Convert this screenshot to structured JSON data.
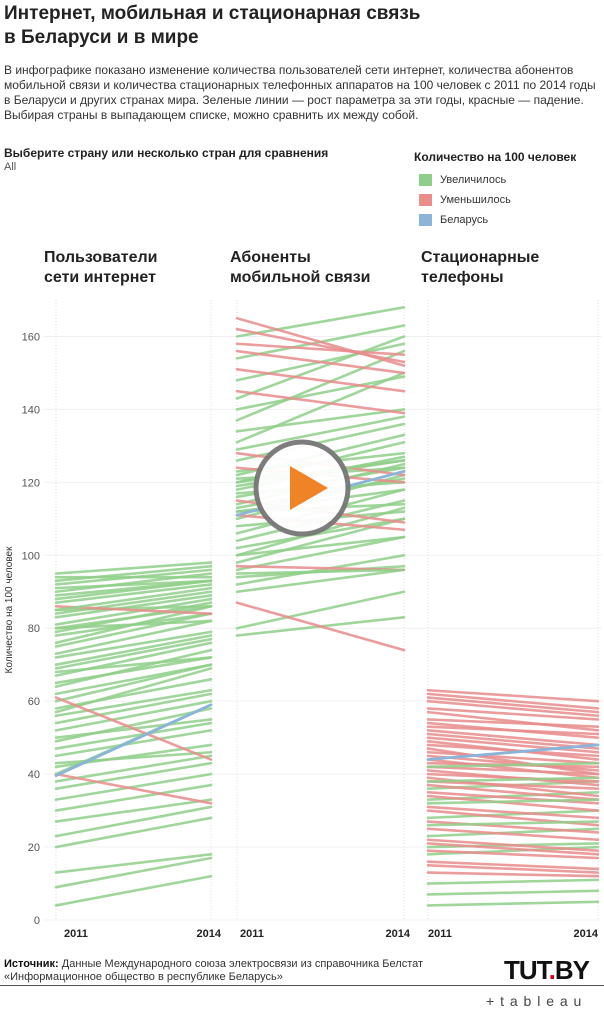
{
  "header": {
    "title_line1": "Интернет, мобильная и стационарная связь",
    "title_line2": "в Беларуси и в мире",
    "description": "В инфографике показано изменение количества пользователей сети интернет, количества абонентов мобильной связи и количества стационарных телефонных аппаратов на 100 человек с 2011 по 2014 годы в Беларуси и других странах мира. Зеленые линии — рост параметра за эти годы, красные — падение. Выбирая страны в выпадающем списке, можно сравнить их между собой."
  },
  "filter": {
    "label": "Выберите страну или несколько стран для сравнения",
    "value": "All"
  },
  "legend": {
    "title": "Количество на 100 человек",
    "items": [
      {
        "label": "Увеличилось",
        "color": "#8fcf8a"
      },
      {
        "label": "Уменьшилось",
        "color": "#e88c8c"
      },
      {
        "label": "Беларусь",
        "color": "#8ab4d8"
      }
    ]
  },
  "panels": [
    {
      "title_line1": "Пользователи",
      "title_line2": "сети интернет"
    },
    {
      "title_line1": "Абоненты",
      "title_line2": "мобильной связи"
    },
    {
      "title_line1": "Стационарные",
      "title_line2": "телефоны"
    }
  ],
  "chart_data": {
    "type": "line",
    "ylabel": "Количество на 100 человек",
    "ylim": [
      0,
      170
    ],
    "yticks": [
      0,
      20,
      40,
      60,
      80,
      100,
      120,
      140,
      160
    ],
    "x": [
      "2011",
      "2014"
    ],
    "colors": {
      "increase": "#8fcf8a",
      "decrease": "#e88c8c",
      "belarus": "#8ab4d8"
    },
    "panels": [
      {
        "name": "Пользователи сети интернет",
        "lines": [
          [
            4,
            12
          ],
          [
            9,
            17
          ],
          [
            13,
            18
          ],
          [
            20,
            28
          ],
          [
            23,
            31
          ],
          [
            27,
            33
          ],
          [
            30,
            37
          ],
          [
            33,
            40
          ],
          [
            36,
            43
          ],
          [
            38,
            45
          ],
          [
            40,
            32
          ],
          [
            40,
            59
          ],
          [
            42,
            48
          ],
          [
            43,
            46
          ],
          [
            45,
            52
          ],
          [
            47,
            54
          ],
          [
            49,
            58
          ],
          [
            50,
            55
          ],
          [
            52,
            60
          ],
          [
            54,
            62
          ],
          [
            56,
            63
          ],
          [
            57,
            69
          ],
          [
            58,
            66
          ],
          [
            60,
            70
          ],
          [
            62,
            70
          ],
          [
            64,
            74
          ],
          [
            65,
            72
          ],
          [
            67,
            76
          ],
          [
            69,
            77
          ],
          [
            70,
            78
          ],
          [
            72,
            79
          ],
          [
            73,
            82
          ],
          [
            75,
            84
          ],
          [
            76,
            86
          ],
          [
            78,
            84
          ],
          [
            79,
            87
          ],
          [
            80,
            86
          ],
          [
            81,
            88
          ],
          [
            83,
            89
          ],
          [
            84,
            90
          ],
          [
            85,
            86
          ],
          [
            86,
            84
          ],
          [
            87,
            92
          ],
          [
            88,
            93
          ],
          [
            90,
            95
          ],
          [
            91,
            93
          ],
          [
            92,
            96
          ],
          [
            93,
            97
          ],
          [
            94,
            94
          ],
          [
            95,
            98
          ],
          [
            61,
            44
          ],
          [
            80,
            82
          ],
          [
            85,
            91
          ],
          [
            89,
            93
          ],
          [
            68,
            72
          ]
        ],
        "belarus": [
          39.6,
          59
        ]
      },
      {
        "name": "Абоненты мобильной связи",
        "lines": [
          [
            78,
            83
          ],
          [
            80,
            90
          ],
          [
            87,
            74
          ],
          [
            90,
            96
          ],
          [
            92,
            100
          ],
          [
            94,
            97
          ],
          [
            96,
            105
          ],
          [
            97,
            96
          ],
          [
            98,
            110
          ],
          [
            100,
            113
          ],
          [
            102,
            110
          ],
          [
            104,
            115
          ],
          [
            106,
            118
          ],
          [
            108,
            112
          ],
          [
            110,
            122
          ],
          [
            111,
            107
          ],
          [
            112,
            118
          ],
          [
            113,
            121
          ],
          [
            114,
            125
          ],
          [
            115,
            109
          ],
          [
            116,
            124
          ],
          [
            117,
            120
          ],
          [
            118,
            127
          ],
          [
            119,
            126
          ],
          [
            120,
            131
          ],
          [
            121,
            124
          ],
          [
            122,
            133
          ],
          [
            123,
            128
          ],
          [
            124,
            120
          ],
          [
            126,
            136
          ],
          [
            128,
            122
          ],
          [
            131,
            150
          ],
          [
            134,
            140
          ],
          [
            137,
            156
          ],
          [
            140,
            149
          ],
          [
            143,
            160
          ],
          [
            145,
            139
          ],
          [
            148,
            158
          ],
          [
            151,
            145
          ],
          [
            154,
            163
          ],
          [
            156,
            150
          ],
          [
            158,
            155
          ],
          [
            160,
            168
          ],
          [
            162,
            153
          ],
          [
            165,
            152
          ],
          [
            129,
            138
          ],
          [
            120,
            126
          ],
          [
            112,
            114
          ],
          [
            100,
            105
          ],
          [
            95,
            96
          ]
        ],
        "belarus": [
          111,
          123
        ]
      },
      {
        "name": "Стационарные телефоны",
        "lines": [
          [
            4,
            5
          ],
          [
            7,
            8
          ],
          [
            10,
            11
          ],
          [
            13,
            12
          ],
          [
            16,
            14
          ],
          [
            18,
            20
          ],
          [
            19,
            17
          ],
          [
            20,
            21
          ],
          [
            22,
            19
          ],
          [
            23,
            25
          ],
          [
            25,
            22
          ],
          [
            27,
            24
          ],
          [
            28,
            30
          ],
          [
            30,
            26
          ],
          [
            31,
            28
          ],
          [
            33,
            35
          ],
          [
            34,
            30
          ],
          [
            35,
            32
          ],
          [
            36,
            38
          ],
          [
            37,
            33
          ],
          [
            38,
            36
          ],
          [
            39,
            34
          ],
          [
            40,
            38
          ],
          [
            41,
            37
          ],
          [
            42,
            40
          ],
          [
            43,
            42
          ],
          [
            44,
            39
          ],
          [
            45,
            41
          ],
          [
            46,
            43
          ],
          [
            47,
            40
          ],
          [
            48,
            45
          ],
          [
            49,
            44
          ],
          [
            50,
            46
          ],
          [
            51,
            47
          ],
          [
            52,
            48
          ],
          [
            53,
            51
          ],
          [
            54,
            50
          ],
          [
            55,
            53
          ],
          [
            57,
            52
          ],
          [
            58,
            55
          ],
          [
            60,
            56
          ],
          [
            61,
            57
          ],
          [
            62,
            58
          ],
          [
            63,
            60
          ],
          [
            42,
            43
          ],
          [
            38,
            39
          ],
          [
            32,
            33
          ],
          [
            26,
            27
          ],
          [
            21,
            18
          ],
          [
            15,
            13
          ]
        ],
        "belarus": [
          44,
          48
        ]
      }
    ]
  },
  "source": {
    "label": "Источник:",
    "text": "Данные Международного союза электросвязи из справочника Белстат «Информационное общество в республике Беларусь»"
  },
  "brand": {
    "name": "TUT",
    "dot": ".",
    "suffix": "BY"
  },
  "tableau": {
    "label": "+ t a b l e a u"
  }
}
